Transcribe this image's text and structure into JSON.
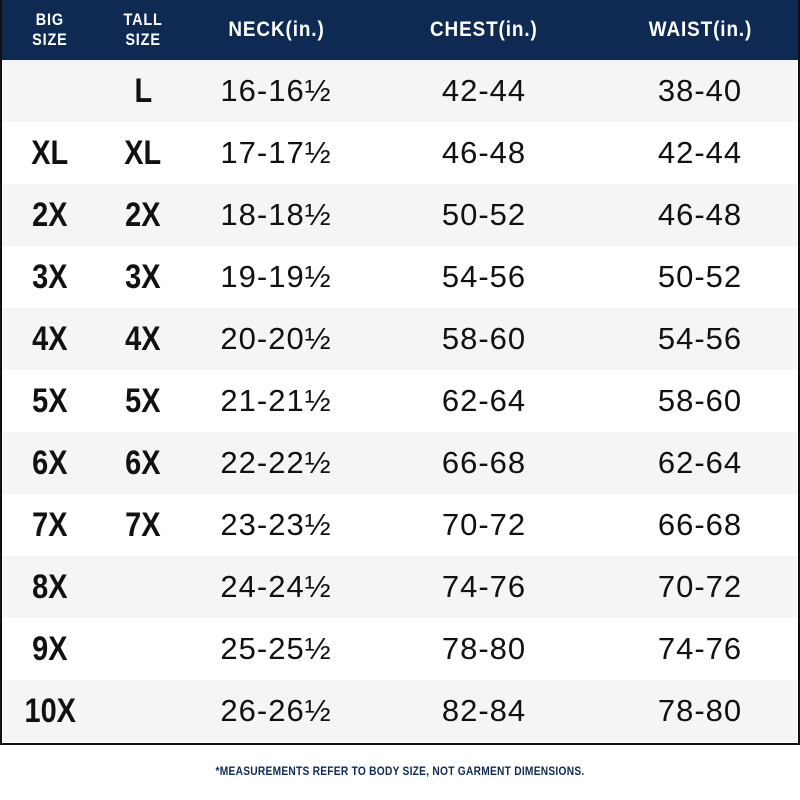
{
  "header": {
    "big_size": [
      "BIG",
      "SIZE"
    ],
    "tall_size": [
      "TALL",
      "SIZE"
    ],
    "neck": "NECK(in.)",
    "chest": "CHEST(in.)",
    "waist": "WAIST(in.)"
  },
  "rows": [
    {
      "big": "",
      "tall": "L",
      "neck": "16-16½",
      "chest": "42-44",
      "waist": "38-40"
    },
    {
      "big": "XL",
      "tall": "XL",
      "neck": "17-17½",
      "chest": "46-48",
      "waist": "42-44"
    },
    {
      "big": "2X",
      "tall": "2X",
      "neck": "18-18½",
      "chest": "50-52",
      "waist": "46-48"
    },
    {
      "big": "3X",
      "tall": "3X",
      "neck": "19-19½",
      "chest": "54-56",
      "waist": "50-52"
    },
    {
      "big": "4X",
      "tall": "4X",
      "neck": "20-20½",
      "chest": "58-60",
      "waist": "54-56"
    },
    {
      "big": "5X",
      "tall": "5X",
      "neck": "21-21½",
      "chest": "62-64",
      "waist": "58-60"
    },
    {
      "big": "6X",
      "tall": "6X",
      "neck": "22-22½",
      "chest": "66-68",
      "waist": "62-64"
    },
    {
      "big": "7X",
      "tall": "7X",
      "neck": "23-23½",
      "chest": "70-72",
      "waist": "66-68"
    },
    {
      "big": "8X",
      "tall": "",
      "neck": "24-24½",
      "chest": "74-76",
      "waist": "70-72"
    },
    {
      "big": "9X",
      "tall": "",
      "neck": "25-25½",
      "chest": "78-80",
      "waist": "74-76"
    },
    {
      "big": "10X",
      "tall": "",
      "neck": "26-26½",
      "chest": "82-84",
      "waist": "78-80"
    }
  ],
  "footnote": "*MEASUREMENTS REFER TO BODY SIZE, NOT GARMENT DIMENSIONS.",
  "colors": {
    "header_bg": "#0e2a52",
    "row_alt": "#f5f5f5"
  }
}
